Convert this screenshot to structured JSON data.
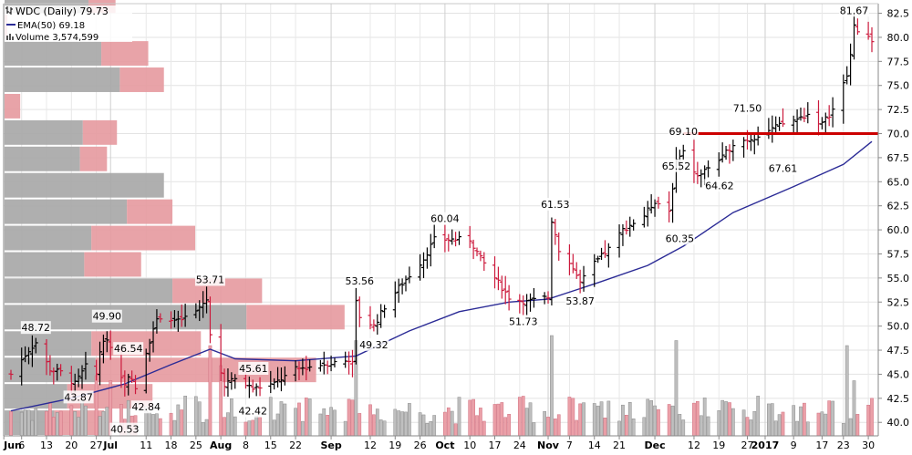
{
  "chart_data": {
    "type": "ohlc",
    "title": "WDC (Daily) 79.73",
    "legend": [
      {
        "label": "WDC (Daily) 79.73",
        "icon": "ohlc-bar-icon"
      },
      {
        "label": "EMA(50) 69.18",
        "icon": "line-swatch-icon"
      },
      {
        "label": "Volume 3,574,599",
        "icon": "volume-bar-icon"
      }
    ],
    "ylim": [
      38.6,
      83.5
    ],
    "yticks": [
      40.0,
      42.5,
      45.0,
      47.5,
      50.0,
      52.5,
      55.0,
      57.5,
      60.0,
      62.5,
      65.0,
      67.5,
      70.0,
      72.5,
      75.0,
      77.5,
      80.0,
      82.5
    ],
    "xlim": [
      "2016-06-03",
      "2017-01-31"
    ],
    "x_tick_labels": [
      {
        "date": "2016-06-01",
        "label": "Jun",
        "bold": true
      },
      {
        "date": "2016-06-06",
        "label": "6"
      },
      {
        "date": "2016-06-13",
        "label": "13"
      },
      {
        "date": "2016-06-20",
        "label": "20"
      },
      {
        "date": "2016-06-27",
        "label": "27"
      },
      {
        "date": "2016-07-01",
        "label": "Jul",
        "bold": true
      },
      {
        "date": "2016-07-11",
        "label": "11"
      },
      {
        "date": "2016-07-18",
        "label": "18"
      },
      {
        "date": "2016-07-25",
        "label": "25"
      },
      {
        "date": "2016-08-01",
        "label": "Aug",
        "bold": true
      },
      {
        "date": "2016-08-08",
        "label": "8"
      },
      {
        "date": "2016-08-15",
        "label": "15"
      },
      {
        "date": "2016-08-22",
        "label": "22"
      },
      {
        "date": "2016-09-01",
        "label": "Sep",
        "bold": true
      },
      {
        "date": "2016-09-12",
        "label": "12"
      },
      {
        "date": "2016-09-19",
        "label": "19"
      },
      {
        "date": "2016-09-26",
        "label": "26"
      },
      {
        "date": "2016-10-03",
        "label": "Oct",
        "bold": true
      },
      {
        "date": "2016-10-10",
        "label": "10"
      },
      {
        "date": "2016-10-17",
        "label": "17"
      },
      {
        "date": "2016-10-24",
        "label": "24"
      },
      {
        "date": "2016-11-01",
        "label": "Nov",
        "bold": true
      },
      {
        "date": "2016-11-07",
        "label": "7"
      },
      {
        "date": "2016-11-14",
        "label": "14"
      },
      {
        "date": "2016-11-21",
        "label": "21"
      },
      {
        "date": "2016-12-01",
        "label": "Dec",
        "bold": true
      },
      {
        "date": "2016-12-12",
        "label": "12"
      },
      {
        "date": "2016-12-19",
        "label": "19"
      },
      {
        "date": "2016-12-27",
        "label": "27"
      },
      {
        "date": "2017-01-01",
        "label": "2017",
        "bold": true
      },
      {
        "date": "2017-01-09",
        "label": "9"
      },
      {
        "date": "2017-01-17",
        "label": "17"
      },
      {
        "date": "2017-01-23",
        "label": "23"
      },
      {
        "date": "2017-01-30",
        "label": "30"
      }
    ],
    "price_anchors": [
      [
        "2016-06-03",
        45.0
      ],
      [
        "2016-06-08",
        47.5
      ],
      [
        "2016-06-10",
        48.3
      ],
      [
        "2016-06-14",
        45.5
      ],
      [
        "2016-06-17",
        45.2
      ],
      [
        "2016-06-21",
        44.0
      ],
      [
        "2016-06-24",
        45.8
      ],
      [
        "2016-06-27",
        45.0
      ],
      [
        "2016-06-28",
        47.5
      ],
      [
        "2016-06-30",
        48.8
      ],
      [
        "2016-07-05",
        43.8
      ],
      [
        "2016-07-06",
        45.0
      ],
      [
        "2016-07-08",
        43.5
      ],
      [
        "2016-07-11",
        47.0
      ],
      [
        "2016-07-13",
        50.0
      ],
      [
        "2016-07-15",
        51.0
      ],
      [
        "2016-07-20",
        50.5
      ],
      [
        "2016-07-25",
        51.5
      ],
      [
        "2016-07-28",
        52.8
      ],
      [
        "2016-07-29",
        49.0
      ],
      [
        "2016-08-02",
        44.0
      ],
      [
        "2016-08-05",
        44.5
      ],
      [
        "2016-08-10",
        43.5
      ],
      [
        "2016-08-16",
        44.0
      ],
      [
        "2016-08-22",
        45.5
      ],
      [
        "2016-08-29",
        46.0
      ],
      [
        "2016-09-07",
        46.5
      ],
      [
        "2016-09-08",
        52.5
      ],
      [
        "2016-09-09",
        51.0
      ],
      [
        "2016-09-13",
        50.0
      ],
      [
        "2016-09-16",
        52.0
      ],
      [
        "2016-09-20",
        54.0
      ],
      [
        "2016-09-27",
        57.0
      ],
      [
        "2016-09-30",
        59.0
      ],
      [
        "2016-10-05",
        59.0
      ],
      [
        "2016-10-10",
        59.0
      ],
      [
        "2016-10-13",
        57.0
      ],
      [
        "2016-10-17",
        55.0
      ],
      [
        "2016-10-21",
        53.0
      ],
      [
        "2016-10-26",
        52.5
      ],
      [
        "2016-11-01",
        53.0
      ],
      [
        "2016-11-02",
        61.0
      ],
      [
        "2016-11-04",
        58.0
      ],
      [
        "2016-11-08",
        56.0
      ],
      [
        "2016-11-10",
        54.5
      ],
      [
        "2016-11-14",
        56.5
      ],
      [
        "2016-11-18",
        58.0
      ],
      [
        "2016-11-22",
        60.0
      ],
      [
        "2016-11-28",
        61.5
      ],
      [
        "2016-12-01",
        63.0
      ],
      [
        "2016-12-05",
        62.0
      ],
      [
        "2016-12-07",
        67.0
      ],
      [
        "2016-12-09",
        68.0
      ],
      [
        "2016-12-13",
        65.5
      ],
      [
        "2016-12-16",
        66.5
      ],
      [
        "2016-12-20",
        67.5
      ],
      [
        "2016-12-23",
        69.0
      ],
      [
        "2016-12-28",
        69.5
      ],
      [
        "2017-01-03",
        70.5
      ],
      [
        "2017-01-06",
        71.0
      ],
      [
        "2017-01-10",
        71.5
      ],
      [
        "2017-01-13",
        72.0
      ],
      [
        "2017-01-17",
        71.0
      ],
      [
        "2017-01-20",
        72.5
      ],
      [
        "2017-01-24",
        76.0
      ],
      [
        "2017-01-26",
        81.0
      ],
      [
        "2017-01-31",
        79.73
      ]
    ],
    "ema50_points": [
      [
        "2016-06-03",
        41.2
      ],
      [
        "2016-06-20",
        42.5
      ],
      [
        "2016-07-05",
        44.0
      ],
      [
        "2016-07-18",
        46.0
      ],
      [
        "2016-07-29",
        47.6
      ],
      [
        "2016-08-05",
        46.6
      ],
      [
        "2016-08-22",
        46.4
      ],
      [
        "2016-09-08",
        46.9
      ],
      [
        "2016-09-23",
        49.5
      ],
      [
        "2016-10-07",
        51.5
      ],
      [
        "2016-10-21",
        52.5
      ],
      [
        "2016-11-01",
        52.8
      ],
      [
        "2016-11-15",
        54.5
      ],
      [
        "2016-11-29",
        56.3
      ],
      [
        "2016-12-09",
        58.3
      ],
      [
        "2016-12-23",
        61.8
      ],
      [
        "2017-01-09",
        64.5
      ],
      [
        "2017-01-23",
        66.8
      ],
      [
        "2017-01-31",
        69.18
      ]
    ],
    "annotations": [
      {
        "date": "2016-06-10",
        "value": 48.72,
        "label": "48.72",
        "pos": "above"
      },
      {
        "date": "2016-06-22",
        "value": 43.87,
        "label": "43.87",
        "pos": "below"
      },
      {
        "date": "2016-06-30",
        "value": 49.9,
        "label": "49.90",
        "pos": "above"
      },
      {
        "date": "2016-07-05",
        "value": 40.53,
        "label": "40.53",
        "pos": "below"
      },
      {
        "date": "2016-07-06",
        "value": 46.54,
        "label": "46.54",
        "pos": "above"
      },
      {
        "date": "2016-07-11",
        "value": 42.84,
        "label": "42.84",
        "pos": "below"
      },
      {
        "date": "2016-07-29",
        "value": 53.71,
        "label": "53.71",
        "pos": "above"
      },
      {
        "date": "2016-08-04",
        "value": 45.61,
        "label": "45.61",
        "pos": "right"
      },
      {
        "date": "2016-08-10",
        "value": 42.42,
        "label": "42.42",
        "pos": "below"
      },
      {
        "date": "2016-09-09",
        "value": 53.56,
        "label": "53.56",
        "pos": "above"
      },
      {
        "date": "2016-09-13",
        "value": 49.32,
        "label": "49.32",
        "pos": "below"
      },
      {
        "date": "2016-10-03",
        "value": 60.04,
        "label": "60.04",
        "pos": "above"
      },
      {
        "date": "2016-10-25",
        "value": 51.73,
        "label": "51.73",
        "pos": "below"
      },
      {
        "date": "2016-11-03",
        "value": 61.53,
        "label": "61.53",
        "pos": "above"
      },
      {
        "date": "2016-11-10",
        "value": 53.87,
        "label": "53.87",
        "pos": "below"
      },
      {
        "date": "2016-12-07",
        "value": 65.52,
        "label": "65.52",
        "pos": "above"
      },
      {
        "date": "2016-12-08",
        "value": 60.35,
        "label": "60.35",
        "pos": "below"
      },
      {
        "date": "2016-12-09",
        "value": 69.1,
        "label": "69.10",
        "pos": "above"
      },
      {
        "date": "2016-12-13",
        "value": 64.62,
        "label": "64.62",
        "pos": "right"
      },
      {
        "date": "2016-12-27",
        "value": 71.5,
        "label": "71.50",
        "pos": "above"
      },
      {
        "date": "2017-01-06",
        "value": 67.61,
        "label": "67.61",
        "pos": "below"
      },
      {
        "date": "2017-01-26",
        "value": 81.67,
        "label": "81.67",
        "pos": "above"
      }
    ],
    "resistance_line": {
      "value": 70.0,
      "from": "2016-12-09",
      "to": "2017-01-31",
      "color": "#cc0000"
    },
    "volume_spikes": [
      {
        "date": "2016-06-27",
        "volume": 0.6
      },
      {
        "date": "2016-07-01",
        "volume": 0.55
      },
      {
        "date": "2016-07-29",
        "volume": 0.9
      },
      {
        "date": "2016-08-01",
        "volume": 0.7
      },
      {
        "date": "2016-09-08",
        "volume": 0.95
      },
      {
        "date": "2016-11-02",
        "volume": 1.0
      },
      {
        "date": "2016-12-07",
        "volume": 0.95
      },
      {
        "date": "2017-01-24",
        "volume": 0.9
      },
      {
        "date": "2017-01-26",
        "volume": 0.55
      }
    ],
    "volume_by_price": {
      "bin_width": 2.74,
      "first_bin_bottom": 38.6,
      "up": [
        3.5,
        4.4,
        6.4,
        6.1,
        17.0,
        11.8,
        5.6,
        6.1,
        8.6,
        11.2,
        5.3,
        5.5,
        0.0,
        8.1,
        6.8,
        0.0,
        5.9
      ],
      "down": [
        3.5,
        6.0,
        15.5,
        7.7,
        6.9,
        6.3,
        4.0,
        7.3,
        3.2,
        0.0,
        1.9,
        2.4,
        1.1,
        3.1,
        3.3,
        0.2,
        1.9
      ]
    },
    "colors": {
      "up": "#000000",
      "down": "#cc1a3c",
      "ema": "#2b2b96",
      "vbp_up": "#a6a6a6",
      "vbp_down": "#e6999f",
      "volume_up": "#bfbfbf",
      "volume_down": "#eba0a8"
    }
  }
}
